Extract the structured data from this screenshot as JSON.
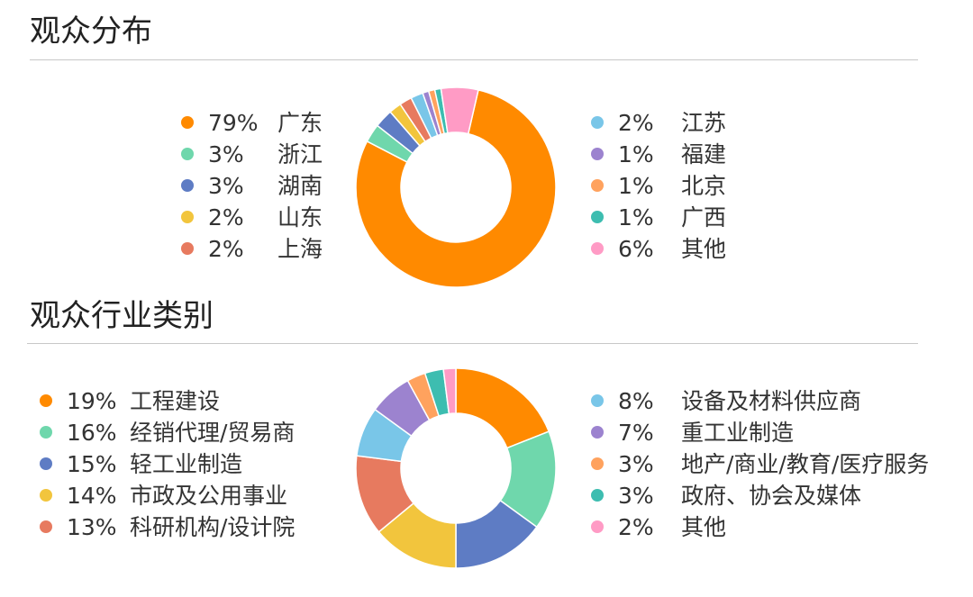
{
  "chart_data": [
    {
      "type": "pie",
      "variant": "donut",
      "title": "观众分布",
      "categories": [
        "广东",
        "浙江",
        "湖南",
        "山东",
        "上海",
        "江苏",
        "福建",
        "北京",
        "广西",
        "其他"
      ],
      "labels": [
        "79%",
        "3%",
        "3%",
        "2%",
        "2%",
        "2%",
        "1%",
        "1%",
        "1%",
        "6%"
      ],
      "values": [
        79,
        3,
        3,
        2,
        2,
        2,
        1,
        1,
        1,
        6
      ],
      "colors": [
        "#FF8A00",
        "#6FD7AC",
        "#5E7CC4",
        "#F2C53D",
        "#E77A5F",
        "#79C6E8",
        "#9C83CF",
        "#FFA25E",
        "#3DBDB0",
        "#FF9BC5"
      ],
      "legend": "split-left-right"
    },
    {
      "type": "pie",
      "variant": "donut",
      "title": "观众行业类别",
      "categories": [
        "工程建设",
        "经销代理/贸易商",
        "轻工业制造",
        "市政及公用事业",
        "科研机构/设计院",
        "设备及材料供应商",
        "重工业制造",
        "地产/商业/教育/医疗服务",
        "政府、协会及媒体",
        "其他"
      ],
      "labels": [
        "19%",
        "16%",
        "15%",
        "14%",
        "13%",
        "8%",
        "7%",
        "3%",
        "3%",
        "2%"
      ],
      "values": [
        19,
        16,
        15,
        14,
        13,
        8,
        7,
        3,
        3,
        2
      ],
      "colors": [
        "#FF8A00",
        "#6FD7AC",
        "#5E7CC4",
        "#F2C53D",
        "#E77A5F",
        "#79C6E8",
        "#9C83CF",
        "#FFA25E",
        "#3DBDB0",
        "#FF9BC5"
      ],
      "legend": "split-left-right"
    }
  ]
}
